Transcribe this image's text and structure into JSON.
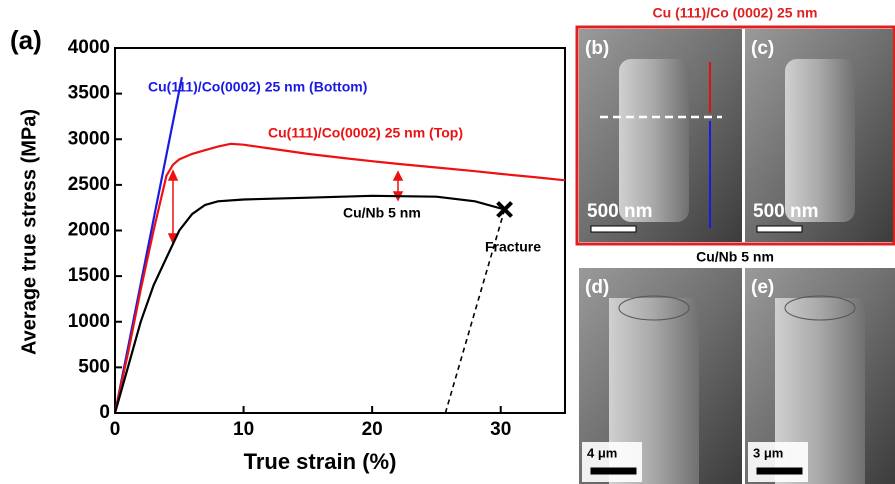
{
  "chart_data": {
    "type": "line",
    "panel_label": "(a)",
    "xlabel": "True strain (%)",
    "ylabel": "Average true stress (MPa)",
    "xlim": [
      0,
      35
    ],
    "ylim": [
      0,
      4000
    ],
    "xticks": [
      0,
      10,
      20,
      30
    ],
    "yticks": [
      0,
      500,
      1000,
      1500,
      2000,
      2500,
      3000,
      3500,
      4000
    ],
    "series": [
      {
        "name": "Cu(111)/Co(0002) 25 nm (Bottom)",
        "color": "#1a1ae6",
        "x": [
          0,
          5.2
        ],
        "values": [
          0,
          3680
        ]
      },
      {
        "name": "Cu(111)/Co(0002) 25 nm (Top)",
        "color": "#ee1111",
        "x": [
          0,
          1,
          2,
          3,
          4,
          4.5,
          5,
          6,
          7,
          8,
          9,
          10,
          12,
          15,
          18,
          20,
          22,
          25,
          28,
          30,
          33,
          35
        ],
        "values": [
          0,
          650,
          1350,
          2000,
          2600,
          2720,
          2780,
          2840,
          2880,
          2920,
          2950,
          2940,
          2900,
          2840,
          2790,
          2760,
          2730,
          2690,
          2650,
          2620,
          2580,
          2550
        ]
      },
      {
        "name": "Cu/Nb 5 nm",
        "color": "#000000",
        "x": [
          0,
          1,
          2,
          3,
          4,
          5,
          6,
          7,
          8,
          10,
          15,
          20,
          25,
          28,
          30.3
        ],
        "values": [
          0,
          500,
          1000,
          1400,
          1700,
          2000,
          2180,
          2280,
          2320,
          2340,
          2360,
          2380,
          2370,
          2320,
          2230
        ]
      },
      {
        "name": "Fracture",
        "color": "#000000",
        "dash": true,
        "x": [
          25.7,
          30.3
        ],
        "values": [
          0,
          2230
        ]
      }
    ]
  },
  "images": {
    "top_title": "Cu (111)/Co (0002) 25 nm",
    "bottom_title": "Cu/Nb 5 nm",
    "panels": [
      {
        "label": "(b)",
        "scale": "500 nm"
      },
      {
        "label": "(c)",
        "scale": "500 nm"
      },
      {
        "label": "(d)",
        "scale": "4 μm"
      },
      {
        "label": "(e)",
        "scale": "3 μm"
      }
    ]
  }
}
